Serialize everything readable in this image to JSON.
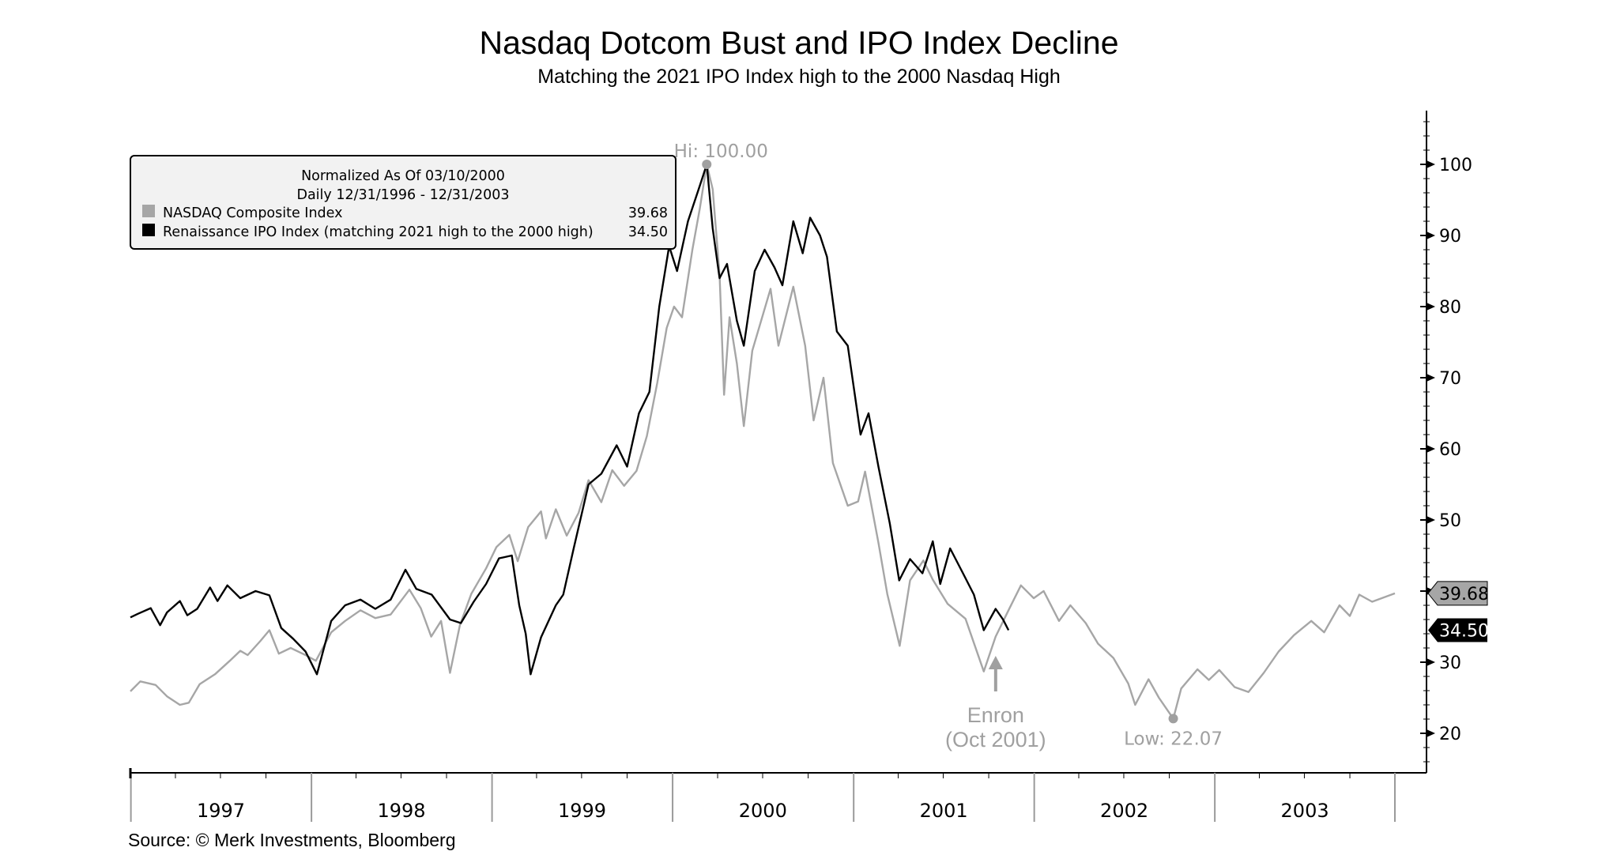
{
  "chart_data": {
    "type": "line",
    "title": "Nasdaq Dotcom Bust and IPO Index Decline",
    "subtitle": "Matching the 2021 IPO Index high to the 2000 Nasdaq High",
    "source": "Source: © Merk Investments, Bloomberg",
    "ylim": [
      15,
      107
    ],
    "y_ticks": [
      "20",
      "30",
      "40",
      "50",
      "60",
      "70",
      "80",
      "90",
      "100"
    ],
    "x_range": [
      "1996-12-31",
      "2003-12-31"
    ],
    "x_ticks": [
      "1997",
      "1998",
      "1999",
      "2000",
      "2001",
      "2002",
      "2003"
    ],
    "y_axis_side": "right",
    "grid": false,
    "legend_position": "top-left",
    "legend": {
      "header1": "Normalized As Of 03/10/2000",
      "header2": "Daily 12/31/1996 - 12/31/2003"
    },
    "series": [
      {
        "name": "NASDAQ Composite Index",
        "color": "#a6a6a6",
        "last_value": "39.68",
        "points": [
          [
            "1996-12-31",
            25.9
          ],
          [
            "1997-01-20",
            27.3
          ],
          [
            "1997-02-20",
            26.8
          ],
          [
            "1997-03-15",
            25.2
          ],
          [
            "1997-04-10",
            24.0
          ],
          [
            "1997-04-28",
            24.3
          ],
          [
            "1997-05-20",
            26.9
          ],
          [
            "1997-06-20",
            28.3
          ],
          [
            "1997-07-20",
            30.2
          ],
          [
            "1997-08-10",
            31.6
          ],
          [
            "1997-08-25",
            31.0
          ],
          [
            "1997-09-20",
            33.0
          ],
          [
            "1997-10-08",
            34.5
          ],
          [
            "1997-10-27",
            31.2
          ],
          [
            "1997-11-20",
            32.0
          ],
          [
            "1997-12-20",
            31.0
          ],
          [
            "1998-01-10",
            30.2
          ],
          [
            "1998-02-10",
            34.2
          ],
          [
            "1998-03-10",
            35.8
          ],
          [
            "1998-04-10",
            37.3
          ],
          [
            "1998-05-10",
            36.2
          ],
          [
            "1998-06-10",
            36.7
          ],
          [
            "1998-07-18",
            40.2
          ],
          [
            "1998-08-10",
            37.6
          ],
          [
            "1998-08-31",
            33.6
          ],
          [
            "1998-09-20",
            35.8
          ],
          [
            "1998-10-08",
            28.5
          ],
          [
            "1998-10-28",
            35.2
          ],
          [
            "1998-11-20",
            39.6
          ],
          [
            "1998-12-20",
            43.2
          ],
          [
            "1999-01-10",
            46.2
          ],
          [
            "1999-02-05",
            47.9
          ],
          [
            "1999-02-22",
            44.2
          ],
          [
            "1999-03-15",
            49.0
          ],
          [
            "1999-04-10",
            51.2
          ],
          [
            "1999-04-20",
            47.4
          ],
          [
            "1999-05-10",
            51.5
          ],
          [
            "1999-06-01",
            47.8
          ],
          [
            "1999-06-25",
            51.0
          ],
          [
            "1999-07-15",
            55.6
          ],
          [
            "1999-08-10",
            52.5
          ],
          [
            "1999-09-01",
            57.0
          ],
          [
            "1999-09-25",
            54.8
          ],
          [
            "1999-10-20",
            56.9
          ],
          [
            "1999-11-10",
            61.8
          ],
          [
            "1999-12-01",
            69.3
          ],
          [
            "1999-12-20",
            77.0
          ],
          [
            "2000-01-04",
            80.0
          ],
          [
            "2000-01-20",
            78.5
          ],
          [
            "2000-02-10",
            88.0
          ],
          [
            "2000-02-25",
            93.8
          ],
          [
            "2000-03-10",
            100.0
          ],
          [
            "2000-03-22",
            96.5
          ],
          [
            "2000-04-05",
            84.5
          ],
          [
            "2000-04-14",
            67.6
          ],
          [
            "2000-04-25",
            78.5
          ],
          [
            "2000-05-10",
            72.0
          ],
          [
            "2000-05-24",
            63.2
          ],
          [
            "2000-06-10",
            73.8
          ],
          [
            "2000-07-17",
            82.5
          ],
          [
            "2000-08-02",
            74.5
          ],
          [
            "2000-09-01",
            82.8
          ],
          [
            "2000-09-25",
            74.5
          ],
          [
            "2000-10-12",
            64.0
          ],
          [
            "2000-11-01",
            70.0
          ],
          [
            "2000-11-20",
            58.0
          ],
          [
            "2000-12-20",
            52.0
          ],
          [
            "2001-01-10",
            52.6
          ],
          [
            "2001-01-24",
            56.8
          ],
          [
            "2001-02-20",
            46.8
          ],
          [
            "2001-03-10",
            39.6
          ],
          [
            "2001-04-04",
            32.3
          ],
          [
            "2001-04-25",
            41.5
          ],
          [
            "2001-05-22",
            44.3
          ],
          [
            "2001-06-10",
            41.6
          ],
          [
            "2001-07-10",
            38.2
          ],
          [
            "2001-08-15",
            36.1
          ],
          [
            "2001-09-21",
            28.7
          ],
          [
            "2001-10-15",
            33.6
          ],
          [
            "2001-11-10",
            37.3
          ],
          [
            "2001-12-05",
            40.8
          ],
          [
            "2001-12-31",
            39.0
          ],
          [
            "2002-01-20",
            40.0
          ],
          [
            "2002-02-20",
            35.8
          ],
          [
            "2002-03-15",
            38.0
          ],
          [
            "2002-04-15",
            35.5
          ],
          [
            "2002-05-10",
            32.6
          ],
          [
            "2002-06-10",
            30.6
          ],
          [
            "2002-07-10",
            27.0
          ],
          [
            "2002-07-24",
            24.0
          ],
          [
            "2002-08-20",
            27.6
          ],
          [
            "2002-09-10",
            25.0
          ],
          [
            "2002-10-09",
            22.07
          ],
          [
            "2002-10-25",
            26.3
          ],
          [
            "2002-11-27",
            29.0
          ],
          [
            "2002-12-20",
            27.5
          ],
          [
            "2003-01-10",
            28.9
          ],
          [
            "2003-02-10",
            26.5
          ],
          [
            "2003-03-10",
            25.8
          ],
          [
            "2003-04-10",
            28.5
          ],
          [
            "2003-05-10",
            31.5
          ],
          [
            "2003-06-10",
            33.8
          ],
          [
            "2003-07-15",
            35.8
          ],
          [
            "2003-08-10",
            34.2
          ],
          [
            "2003-09-10",
            38.0
          ],
          [
            "2003-10-01",
            36.5
          ],
          [
            "2003-10-20",
            39.5
          ],
          [
            "2003-11-15",
            38.5
          ],
          [
            "2003-12-31",
            39.68
          ]
        ]
      },
      {
        "name": "Renaissance IPO Index (matching 2021 high to the 2000 high)",
        "color": "#000000",
        "last_value": "34.50",
        "points": [
          [
            "1996-12-31",
            36.3
          ],
          [
            "1997-01-15",
            36.8
          ],
          [
            "1997-02-10",
            37.6
          ],
          [
            "1997-03-01",
            35.2
          ],
          [
            "1997-03-15",
            37.0
          ],
          [
            "1997-04-10",
            38.6
          ],
          [
            "1997-04-25",
            36.6
          ],
          [
            "1997-05-15",
            37.5
          ],
          [
            "1997-06-10",
            40.5
          ],
          [
            "1997-06-25",
            38.6
          ],
          [
            "1997-07-15",
            40.8
          ],
          [
            "1997-08-10",
            39.0
          ],
          [
            "1997-09-10",
            40.0
          ],
          [
            "1997-10-08",
            39.4
          ],
          [
            "1997-11-01",
            34.8
          ],
          [
            "1997-11-25",
            33.3
          ],
          [
            "1997-12-20",
            31.5
          ],
          [
            "1998-01-12",
            28.3
          ],
          [
            "1998-02-10",
            35.8
          ],
          [
            "1998-03-10",
            38.0
          ],
          [
            "1998-04-10",
            38.8
          ],
          [
            "1998-05-10",
            37.5
          ],
          [
            "1998-06-10",
            38.8
          ],
          [
            "1998-07-10",
            43.0
          ],
          [
            "1998-08-01",
            40.3
          ],
          [
            "1998-09-01",
            39.5
          ],
          [
            "1998-10-08",
            36.0
          ],
          [
            "1998-10-30",
            35.5
          ],
          [
            "1998-11-25",
            38.5
          ],
          [
            "1998-12-20",
            41.0
          ],
          [
            "1999-01-15",
            44.6
          ],
          [
            "1999-02-10",
            45.0
          ],
          [
            "1999-02-25",
            38.0
          ],
          [
            "1999-03-10",
            34.0
          ],
          [
            "1999-03-20",
            28.3
          ],
          [
            "1999-04-10",
            33.5
          ],
          [
            "1999-05-10",
            38.0
          ],
          [
            "1999-05-25",
            39.5
          ],
          [
            "1999-06-15",
            46.0
          ],
          [
            "1999-07-15",
            55.0
          ],
          [
            "1999-08-10",
            56.5
          ],
          [
            "1999-09-10",
            60.5
          ],
          [
            "1999-10-01",
            57.5
          ],
          [
            "1999-10-25",
            65.0
          ],
          [
            "1999-11-15",
            68.0
          ],
          [
            "1999-12-05",
            80.0
          ],
          [
            "1999-12-25",
            88.5
          ],
          [
            "2000-01-10",
            85.0
          ],
          [
            "2000-02-01",
            92.0
          ],
          [
            "2000-02-25",
            97.0
          ],
          [
            "2000-03-10",
            100.0
          ],
          [
            "2000-03-22",
            91.0
          ],
          [
            "2000-04-05",
            84.0
          ],
          [
            "2000-04-20",
            86.0
          ],
          [
            "2000-05-10",
            78.0
          ],
          [
            "2000-05-24",
            74.5
          ],
          [
            "2000-06-15",
            85.0
          ],
          [
            "2000-07-05",
            88.0
          ],
          [
            "2000-07-25",
            85.5
          ],
          [
            "2000-08-10",
            83.0
          ],
          [
            "2000-09-01",
            92.0
          ],
          [
            "2000-09-20",
            87.5
          ],
          [
            "2000-10-05",
            92.5
          ],
          [
            "2000-10-25",
            90.0
          ],
          [
            "2000-11-08",
            87.0
          ],
          [
            "2000-11-28",
            76.5
          ],
          [
            "2000-12-20",
            74.5
          ],
          [
            "2001-01-15",
            62.0
          ],
          [
            "2001-01-31",
            65.0
          ],
          [
            "2001-02-20",
            57.5
          ],
          [
            "2001-03-15",
            49.5
          ],
          [
            "2001-04-03",
            41.5
          ],
          [
            "2001-04-25",
            44.5
          ],
          [
            "2001-05-20",
            42.5
          ],
          [
            "2001-06-10",
            47.0
          ],
          [
            "2001-06-25",
            41.0
          ],
          [
            "2001-07-15",
            46.0
          ],
          [
            "2001-08-10",
            42.5
          ],
          [
            "2001-09-01",
            39.5
          ],
          [
            "2001-09-21",
            34.5
          ],
          [
            "2001-10-15",
            37.5
          ],
          [
            "2001-10-30",
            36.0
          ],
          [
            "2001-11-10",
            34.5
          ]
        ]
      }
    ],
    "annotations": {
      "high_label": "Hi: 100.00",
      "high_date": "2000-03-10",
      "high_value": 100.0,
      "low_label": "Low: 22.07",
      "low_date": "2002-10-09",
      "low_value": 22.07,
      "event_line1": "Enron",
      "event_line2": "(Oct 2001)",
      "event_date": "2001-10-15"
    }
  }
}
